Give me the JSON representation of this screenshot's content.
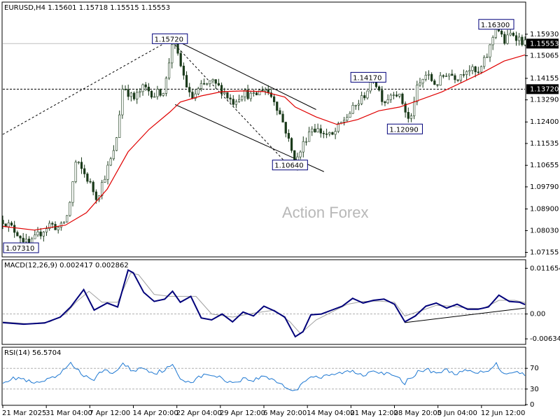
{
  "header": "EURUSD,H4  1.15601 1.15718 1.15515 1.15553",
  "watermark": "Action Forex",
  "colors": {
    "candle": "#1a3a1a",
    "ma": "#e00000",
    "macd": "#00007a",
    "signal": "#a0a0a0",
    "rsi": "#1e78d2",
    "label_border": "#00007a",
    "current_bg": "#000000"
  },
  "chart_data": {
    "type": "candlestick",
    "symbol": "EURUSD",
    "timeframe": "H4",
    "ohlc": {
      "open": 1.15601,
      "high": 1.15718,
      "low": 1.15515,
      "close": 1.15553
    },
    "y_ticks": [
      "1.15930",
      "1.15065",
      "1.14155",
      "1.13290",
      "1.12400",
      "1.11535",
      "1.10655",
      "1.09790",
      "1.08900",
      "1.08030",
      "1.07155"
    ],
    "y_tick_values": [
      1.1593,
      1.15065,
      1.14155,
      1.1329,
      1.124,
      1.11535,
      1.10655,
      1.0979,
      1.089,
      1.0803,
      1.07155
    ],
    "y_range": [
      1.07,
      1.168
    ],
    "x_ticks": [
      "21 Mar 2025",
      "31 Mar 04:00",
      "7 Apr 12:00",
      "14 Apr 20:00",
      "22 Apr 04:00",
      "29 Apr 12:00",
      "6 May 20:00",
      "14 May 04:00",
      "21 May 12:00",
      "28 May 20:00",
      "5 Jun 04:00",
      "12 Jun 12:00"
    ],
    "current_price": "1.15553",
    "current_value": 1.15553,
    "horizontal_level": "1.13720",
    "horizontal_value": 1.1372,
    "price_labels": [
      {
        "text": "1.07310",
        "value": 1.0731,
        "t": 0.02
      },
      {
        "text": "1.15720",
        "value": 1.1572,
        "t": 0.32
      },
      {
        "text": "1.10640",
        "value": 1.1064,
        "t": 0.55
      },
      {
        "text": "1.14170",
        "value": 1.1417,
        "t": 0.7
      },
      {
        "text": "1.12090",
        "value": 1.1209,
        "t": 0.77
      },
      {
        "text": "1.16300",
        "value": 1.163,
        "t": 0.945
      }
    ],
    "price_path": [
      [
        0.0,
        1.0845
      ],
      [
        0.03,
        1.079
      ],
      [
        0.05,
        1.0741
      ],
      [
        0.07,
        1.079
      ],
      [
        0.09,
        1.083
      ],
      [
        0.11,
        1.081
      ],
      [
        0.125,
        1.087
      ],
      [
        0.14,
        1.108
      ],
      [
        0.16,
        1.102
      ],
      [
        0.18,
        1.0935
      ],
      [
        0.2,
        1.105
      ],
      [
        0.215,
        1.113
      ],
      [
        0.23,
        1.139
      ],
      [
        0.25,
        1.133
      ],
      [
        0.27,
        1.138
      ],
      [
        0.29,
        1.135
      ],
      [
        0.31,
        1.137
      ],
      [
        0.325,
        1.1572
      ],
      [
        0.34,
        1.147
      ],
      [
        0.36,
        1.133
      ],
      [
        0.38,
        1.138
      ],
      [
        0.4,
        1.14
      ],
      [
        0.42,
        1.137
      ],
      [
        0.44,
        1.132
      ],
      [
        0.46,
        1.136
      ],
      [
        0.48,
        1.134
      ],
      [
        0.5,
        1.138
      ],
      [
        0.52,
        1.133
      ],
      [
        0.54,
        1.122
      ],
      [
        0.56,
        1.107
      ],
      [
        0.575,
        1.115
      ],
      [
        0.59,
        1.122
      ],
      [
        0.61,
        1.12
      ],
      [
        0.63,
        1.118
      ],
      [
        0.65,
        1.124
      ],
      [
        0.67,
        1.129
      ],
      [
        0.69,
        1.134
      ],
      [
        0.71,
        1.1417
      ],
      [
        0.73,
        1.132
      ],
      [
        0.75,
        1.137
      ],
      [
        0.765,
        1.132
      ],
      [
        0.78,
        1.123
      ],
      [
        0.79,
        1.136
      ],
      [
        0.81,
        1.143
      ],
      [
        0.83,
        1.139
      ],
      [
        0.85,
        1.144
      ],
      [
        0.87,
        1.142
      ],
      [
        0.89,
        1.146
      ],
      [
        0.91,
        1.143
      ],
      [
        0.93,
        1.152
      ],
      [
        0.945,
        1.163
      ],
      [
        0.96,
        1.156
      ],
      [
        0.975,
        1.16
      ],
      [
        1.0,
        1.1555
      ]
    ],
    "ma_path": [
      [
        0.0,
        1.082
      ],
      [
        0.06,
        1.0805
      ],
      [
        0.12,
        1.0825
      ],
      [
        0.16,
        1.0875
      ],
      [
        0.2,
        1.097
      ],
      [
        0.24,
        1.112
      ],
      [
        0.28,
        1.121
      ],
      [
        0.32,
        1.128
      ],
      [
        0.34,
        1.132
      ],
      [
        0.38,
        1.1345
      ],
      [
        0.42,
        1.1362
      ],
      [
        0.46,
        1.1365
      ],
      [
        0.5,
        1.1362
      ],
      [
        0.54,
        1.134
      ],
      [
        0.56,
        1.13
      ],
      [
        0.6,
        1.126
      ],
      [
        0.64,
        1.123
      ],
      [
        0.68,
        1.125
      ],
      [
        0.72,
        1.1285
      ],
      [
        0.76,
        1.13
      ],
      [
        0.8,
        1.133
      ],
      [
        0.84,
        1.136
      ],
      [
        0.88,
        1.14
      ],
      [
        0.92,
        1.144
      ],
      [
        0.96,
        1.1485
      ],
      [
        1.0,
        1.151
      ]
    ],
    "trendlines": [
      {
        "style": "dashed",
        "from": [
          0.0,
          1.119
        ],
        "to": [
          0.325,
          1.1575
        ]
      },
      {
        "style": "solid",
        "from": [
          0.325,
          1.1575
        ],
        "to": [
          0.6,
          1.129
        ]
      },
      {
        "style": "solid",
        "from": [
          0.33,
          1.131
        ],
        "to": [
          0.615,
          1.104
        ]
      },
      {
        "style": "dashed",
        "from": [
          0.33,
          1.155
        ],
        "to": [
          0.545,
          1.107
        ]
      }
    ],
    "macd": {
      "label": "MACD(12,26,9) 0.002417 0.002862",
      "y_ticks": [
        "0.011654",
        "0.00",
        "-0.006345"
      ],
      "y_tick_values": [
        0.011654,
        0.0,
        -0.006345
      ],
      "y_range": [
        -0.0074,
        0.0126
      ],
      "zero_line": 0.0,
      "macd_path": [
        [
          0.0,
          -0.0022
        ],
        [
          0.04,
          -0.0026
        ],
        [
          0.08,
          -0.0023
        ],
        [
          0.11,
          -0.0008
        ],
        [
          0.13,
          0.0018
        ],
        [
          0.155,
          0.0062
        ],
        [
          0.175,
          0.001
        ],
        [
          0.2,
          0.0028
        ],
        [
          0.22,
          0.0018
        ],
        [
          0.24,
          0.0112
        ],
        [
          0.25,
          0.0105
        ],
        [
          0.27,
          0.0055
        ],
        [
          0.29,
          0.0032
        ],
        [
          0.31,
          0.0038
        ],
        [
          0.325,
          0.0058
        ],
        [
          0.34,
          0.003
        ],
        [
          0.36,
          0.0045
        ],
        [
          0.38,
          -0.001
        ],
        [
          0.4,
          -0.0015
        ],
        [
          0.42,
          0.0
        ],
        [
          0.44,
          -0.002
        ],
        [
          0.46,
          0.0005
        ],
        [
          0.48,
          -0.0005
        ],
        [
          0.5,
          0.002
        ],
        [
          0.52,
          0.0008
        ],
        [
          0.54,
          -0.0008
        ],
        [
          0.56,
          -0.0058
        ],
        [
          0.575,
          -0.0045
        ],
        [
          0.59,
          -0.0002
        ],
        [
          0.61,
          0.0
        ],
        [
          0.63,
          0.001
        ],
        [
          0.65,
          0.002
        ],
        [
          0.67,
          0.004
        ],
        [
          0.69,
          0.0028
        ],
        [
          0.71,
          0.0035
        ],
        [
          0.73,
          0.0038
        ],
        [
          0.75,
          0.0025
        ],
        [
          0.77,
          -0.002
        ],
        [
          0.79,
          -0.0005
        ],
        [
          0.81,
          0.002
        ],
        [
          0.83,
          0.0028
        ],
        [
          0.85,
          0.0015
        ],
        [
          0.87,
          0.0025
        ],
        [
          0.89,
          0.0012
        ],
        [
          0.91,
          0.0012
        ],
        [
          0.93,
          0.0018
        ],
        [
          0.95,
          0.0048
        ],
        [
          0.97,
          0.0032
        ],
        [
          0.99,
          0.003
        ],
        [
          1.0,
          0.0024
        ]
      ],
      "signal_path": [
        [
          0.0,
          -0.002
        ],
        [
          0.05,
          -0.0025
        ],
        [
          0.09,
          -0.002
        ],
        [
          0.12,
          0.0
        ],
        [
          0.14,
          0.003
        ],
        [
          0.165,
          0.0058
        ],
        [
          0.19,
          0.003
        ],
        [
          0.22,
          0.003
        ],
        [
          0.245,
          0.0105
        ],
        [
          0.26,
          0.01
        ],
        [
          0.29,
          0.005
        ],
        [
          0.32,
          0.0045
        ],
        [
          0.35,
          0.0045
        ],
        [
          0.37,
          0.0045
        ],
        [
          0.4,
          0.0
        ],
        [
          0.44,
          -0.0008
        ],
        [
          0.48,
          0.0002
        ],
        [
          0.52,
          0.001
        ],
        [
          0.55,
          -0.002
        ],
        [
          0.57,
          -0.005
        ],
        [
          0.6,
          -0.0015
        ],
        [
          0.63,
          0.0005
        ],
        [
          0.66,
          0.0025
        ],
        [
          0.69,
          0.0032
        ],
        [
          0.72,
          0.0033
        ],
        [
          0.75,
          0.003
        ],
        [
          0.77,
          -0.0005
        ],
        [
          0.8,
          0.0008
        ],
        [
          0.83,
          0.0022
        ],
        [
          0.86,
          0.002
        ],
        [
          0.89,
          0.0015
        ],
        [
          0.92,
          0.0014
        ],
        [
          0.95,
          0.0035
        ],
        [
          0.98,
          0.0035
        ],
        [
          1.0,
          0.0029
        ]
      ],
      "trendline": {
        "from": [
          0.77,
          -0.0022
        ],
        "to": [
          1.0,
          0.0015
        ]
      }
    },
    "rsi": {
      "label": "RSI(14) 56.5704",
      "y_ticks": [
        "70",
        "30",
        "0"
      ],
      "y_tick_values": [
        70,
        30,
        0
      ],
      "y_range": [
        0,
        100
      ],
      "levels": [
        70,
        30
      ],
      "path": [
        [
          0.0,
          45
        ],
        [
          0.03,
          52
        ],
        [
          0.06,
          40
        ],
        [
          0.09,
          48
        ],
        [
          0.11,
          58
        ],
        [
          0.13,
          82
        ],
        [
          0.15,
          60
        ],
        [
          0.17,
          45
        ],
        [
          0.19,
          66
        ],
        [
          0.21,
          60
        ],
        [
          0.23,
          78
        ],
        [
          0.25,
          65
        ],
        [
          0.27,
          72
        ],
        [
          0.29,
          60
        ],
        [
          0.31,
          68
        ],
        [
          0.325,
          75
        ],
        [
          0.34,
          50
        ],
        [
          0.36,
          44
        ],
        [
          0.38,
          55
        ],
        [
          0.4,
          58
        ],
        [
          0.42,
          50
        ],
        [
          0.44,
          42
        ],
        [
          0.46,
          50
        ],
        [
          0.48,
          47
        ],
        [
          0.5,
          55
        ],
        [
          0.52,
          48
        ],
        [
          0.54,
          35
        ],
        [
          0.56,
          25
        ],
        [
          0.575,
          45
        ],
        [
          0.59,
          55
        ],
        [
          0.61,
          52
        ],
        [
          0.63,
          57
        ],
        [
          0.65,
          62
        ],
        [
          0.67,
          64
        ],
        [
          0.69,
          57
        ],
        [
          0.71,
          68
        ],
        [
          0.73,
          60
        ],
        [
          0.75,
          55
        ],
        [
          0.77,
          42
        ],
        [
          0.79,
          60
        ],
        [
          0.81,
          68
        ],
        [
          0.83,
          62
        ],
        [
          0.85,
          66
        ],
        [
          0.87,
          60
        ],
        [
          0.89,
          65
        ],
        [
          0.91,
          60
        ],
        [
          0.93,
          68
        ],
        [
          0.945,
          78
        ],
        [
          0.96,
          60
        ],
        [
          0.98,
          65
        ],
        [
          1.0,
          57
        ]
      ]
    }
  }
}
